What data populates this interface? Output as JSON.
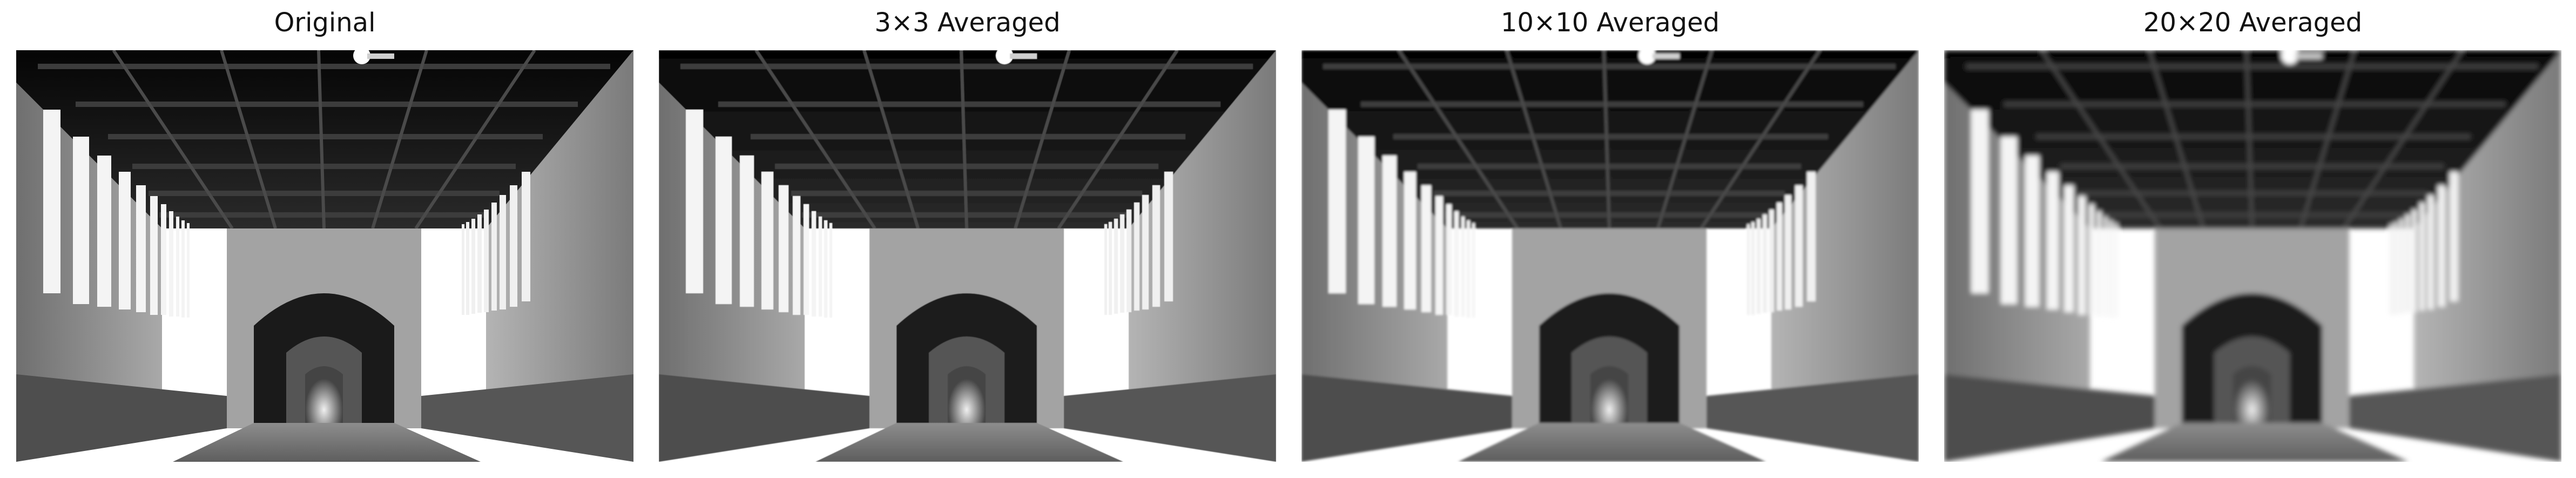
{
  "figure": {
    "panels": [
      {
        "title": "Original",
        "blur": 0,
        "image_label": "arcade-corridor-photo"
      },
      {
        "title": "3×3 Averaged",
        "blur": 0.6,
        "image_label": "arcade-corridor-photo"
      },
      {
        "title": "10×10 Averaged",
        "blur": 2.2,
        "image_label": "arcade-corridor-photo"
      },
      {
        "title": "20×20 Averaged",
        "blur": 4.5,
        "image_label": "arcade-corridor-photo"
      }
    ]
  }
}
